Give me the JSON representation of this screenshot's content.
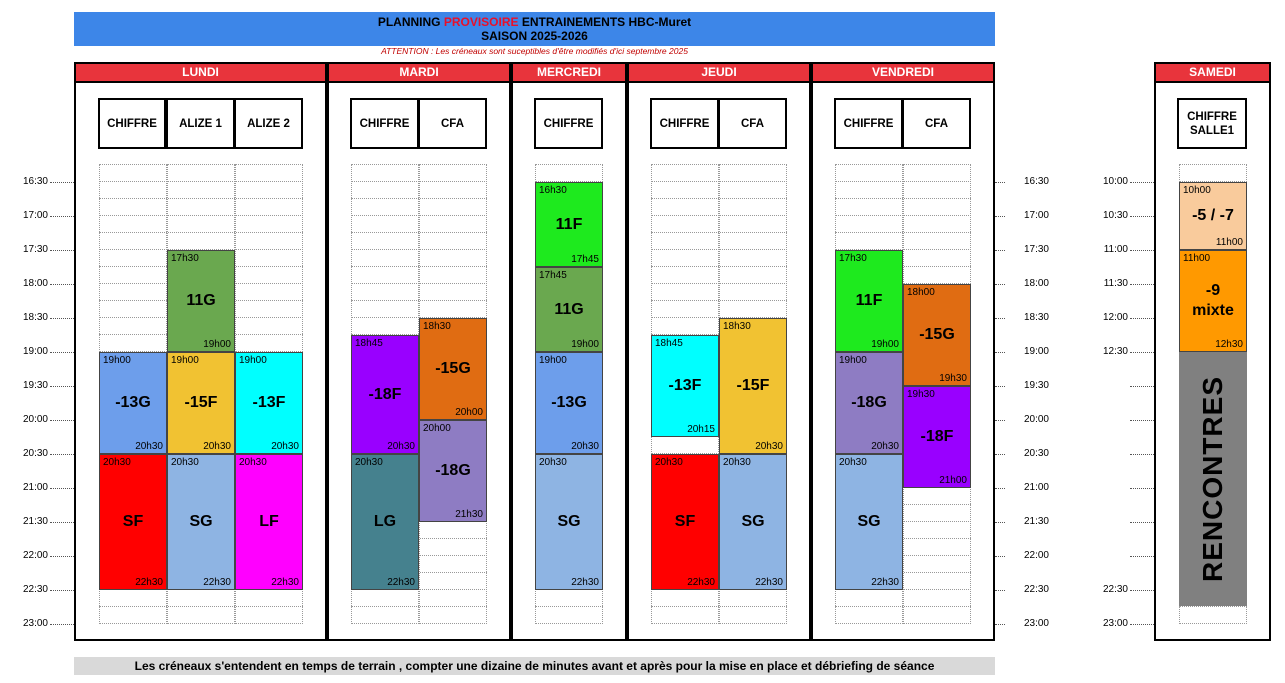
{
  "title": {
    "line1_a": "PLANNING ",
    "line1_red": "PROVISOIRE",
    "line1_b": " ENTRAINEMENTS HBC-Muret",
    "line2": "SAISON 2025-2026",
    "attention": "ATTENTION : Les créneaux sont suceptibles d'être modifiés d'ici septembre 2025"
  },
  "footer": "Les créneaux s'entendent en temps de terrain , compter une dizaine de minutes avant et après pour la mise en place et débriefing de séance",
  "times_weekday": [
    "16:30",
    "17:00",
    "17:30",
    "18:00",
    "18:30",
    "19:00",
    "19:30",
    "20:00",
    "20:30",
    "21:00",
    "21:30",
    "22:00",
    "22:30",
    "23:00"
  ],
  "times_saturday": [
    "10:00",
    "10:30",
    "11:00",
    "11:30",
    "12:00",
    "12:30",
    "",
    "",
    "",
    "",
    "",
    "",
    "22:30",
    "23:00"
  ],
  "colors": {
    "header_red": "#e8343c",
    "title_blue": "#3d86e8"
  },
  "days": [
    {
      "name": "LUNDI",
      "venues": [
        "CHIFFRE",
        "ALIZE 1",
        "ALIZE 2"
      ],
      "blocks": [
        {
          "venue": 1,
          "start": "17h30",
          "end": "19h00",
          "name": "11G",
          "color": "#6aa84f"
        },
        {
          "venue": 0,
          "start": "19h00",
          "end": "20h30",
          "name": "-13G",
          "color": "#6d9eeb"
        },
        {
          "venue": 1,
          "start": "19h00",
          "end": "20h30",
          "name": "-15F",
          "color": "#f1c232"
        },
        {
          "venue": 2,
          "start": "19h00",
          "end": "20h30",
          "name": "-13F",
          "color": "#00ffff"
        },
        {
          "venue": 0,
          "start": "20h30",
          "end": "22h30",
          "name": "SF",
          "color": "#ff0000"
        },
        {
          "venue": 1,
          "start": "20h30",
          "end": "22h30",
          "name": "SG",
          "color": "#8eb4e3"
        },
        {
          "venue": 2,
          "start": "20h30",
          "end": "22h30",
          "name": "LF",
          "color": "#ff00ff"
        }
      ]
    },
    {
      "name": "MARDI",
      "venues": [
        "CHIFFRE",
        "CFA"
      ],
      "blocks": [
        {
          "venue": 1,
          "start": "18h30",
          "end": "20h00",
          "name": "-15G",
          "color": "#e06c12"
        },
        {
          "venue": 0,
          "start": "18h45",
          "end": "20h30",
          "name": "-18F",
          "color": "#9900ff"
        },
        {
          "venue": 1,
          "start": "20h00",
          "end": "21h30",
          "name": "-18G",
          "color": "#8e7cc3"
        },
        {
          "venue": 0,
          "start": "20h30",
          "end": "22h30",
          "name": "LG",
          "color": "#45818e"
        }
      ]
    },
    {
      "name": "MERCREDI",
      "venues": [
        "CHIFFRE"
      ],
      "blocks": [
        {
          "venue": 0,
          "start": "16h30",
          "end": "17h45",
          "name": "11F",
          "color": "#1eea1e"
        },
        {
          "venue": 0,
          "start": "17h45",
          "end": "19h00",
          "name": "11G",
          "color": "#6aa84f"
        },
        {
          "venue": 0,
          "start": "19h00",
          "end": "20h30",
          "name": "-13G",
          "color": "#6d9eeb"
        },
        {
          "venue": 0,
          "start": "20h30",
          "end": "22h30",
          "name": "SG",
          "color": "#8eb4e3"
        }
      ]
    },
    {
      "name": "JEUDI",
      "venues": [
        "CHIFFRE",
        "CFA"
      ],
      "blocks": [
        {
          "venue": 1,
          "start": "18h30",
          "end": "20h30",
          "name": "-15F",
          "color": "#f1c232"
        },
        {
          "venue": 0,
          "start": "18h45",
          "end": "20h15",
          "name": "-13F",
          "color": "#00ffff"
        },
        {
          "venue": 0,
          "start": "20h30",
          "end": "22h30",
          "name": "SF",
          "color": "#ff0000"
        },
        {
          "venue": 1,
          "start": "20h30",
          "end": "22h30",
          "name": "SG",
          "color": "#8eb4e3"
        }
      ]
    },
    {
      "name": "VENDREDI",
      "venues": [
        "CHIFFRE",
        "CFA"
      ],
      "blocks": [
        {
          "venue": 0,
          "start": "17h30",
          "end": "19h00",
          "name": "11F",
          "color": "#1eea1e"
        },
        {
          "venue": 1,
          "start": "18h00",
          "end": "19h30",
          "name": "-15G",
          "color": "#e06c12"
        },
        {
          "venue": 0,
          "start": "19h00",
          "end": "20h30",
          "name": "-18G",
          "color": "#8e7cc3"
        },
        {
          "venue": 1,
          "start": "19h30",
          "end": "21h00",
          "name": "-18F",
          "color": "#9900ff"
        },
        {
          "venue": 0,
          "start": "20h30",
          "end": "22h30",
          "name": "SG",
          "color": "#8eb4e3"
        }
      ]
    }
  ],
  "saturday": {
    "name": "SAMEDI",
    "venues": [
      "CHIFFRE SALLE1"
    ],
    "blocks": [
      {
        "start": "10h00",
        "end": "11h00",
        "name": "-5 / -7",
        "color": "#f9cb9c"
      },
      {
        "start": "11h00",
        "end": "12h30",
        "name": "-9 mixte",
        "color": "#ff9900"
      },
      {
        "start": "",
        "end": "",
        "name": "RENCONTRES",
        "color": "#808080"
      }
    ]
  }
}
